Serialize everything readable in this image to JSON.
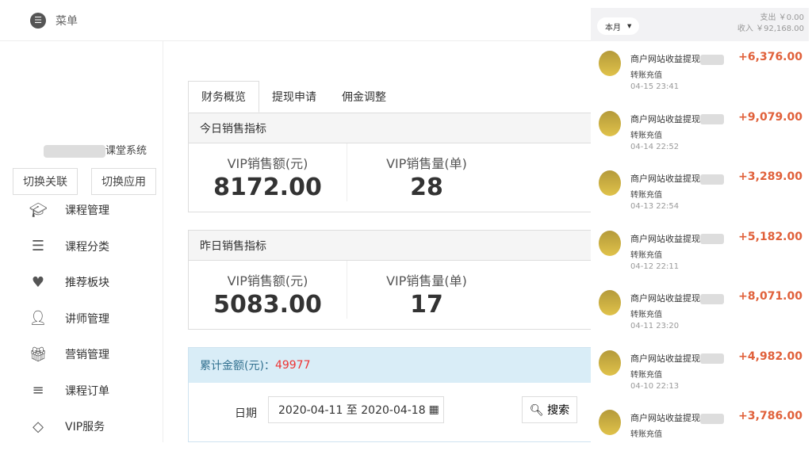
{
  "header": {
    "menu_label": "菜单"
  },
  "sidebar": {
    "system_name": "课堂系统",
    "switch_link": "切换关联",
    "switch_app": "切换应用",
    "items": [
      {
        "label": "课程管理",
        "icon": "graduation-cap-icon"
      },
      {
        "label": "课程分类",
        "icon": "list-icon"
      },
      {
        "label": "推荐板块",
        "icon": "heart-icon"
      },
      {
        "label": "讲师管理",
        "icon": "user-tie-icon"
      },
      {
        "label": "营销管理",
        "icon": "gift-icon"
      },
      {
        "label": "课程订单",
        "icon": "ordered-list-icon"
      },
      {
        "label": "VIP服务",
        "icon": "diamond-icon"
      }
    ]
  },
  "tabs": [
    "财务概览",
    "提现申请",
    "佣金调整"
  ],
  "today": {
    "title": "今日销售指标",
    "amount_label": "VIP销售额(元)",
    "amount": "8172.00",
    "count_label": "VIP销售量(单)",
    "count": "28"
  },
  "yesterday": {
    "title": "昨日销售指标",
    "amount_label": "VIP销售额(元)",
    "amount": "5083.00",
    "count_label": "VIP销售量(单)",
    "count": "17"
  },
  "cumulative": {
    "label": "累计金额(元)：",
    "value": "49977",
    "date_label": "日期",
    "date_range": "2020-04-11 至 2020-04-18",
    "search": "搜索"
  },
  "phone": {
    "period": "本月",
    "expense": "支出 ￥0.00",
    "income": "收入 ￥92,168.00",
    "transactions": [
      {
        "title": "商户网站收益提现",
        "sub": "转账充值",
        "time": "04-15  23:41",
        "amount": "+6,376.00"
      },
      {
        "title": "商户网站收益提现",
        "sub": "转账充值",
        "time": "04-14  22:52",
        "amount": "+9,079.00"
      },
      {
        "title": "商户网站收益提现",
        "sub": "转账充值",
        "time": "04-13  22:54",
        "amount": "+3,289.00"
      },
      {
        "title": "商户网站收益提现",
        "sub": "转账充值",
        "time": "04-12  22:11",
        "amount": "+5,182.00"
      },
      {
        "title": "商户网站收益提现",
        "sub": "转账充值",
        "time": "04-11  23:20",
        "amount": "+8,071.00"
      },
      {
        "title": "商户网站收益提现",
        "sub": "转账充值",
        "time": "04-10  22:13",
        "amount": "+4,982.00"
      },
      {
        "title": "商户网站收益提现",
        "sub": "转账充值",
        "amount": "+3,786.00"
      }
    ]
  },
  "colors": {
    "amount": "#e0603a",
    "highlight": "#e33",
    "info_bg": "#d9edf7"
  }
}
